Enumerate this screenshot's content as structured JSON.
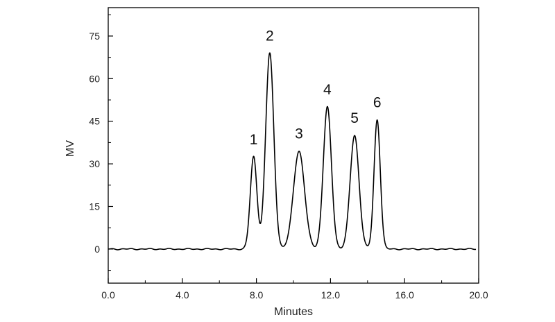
{
  "chart_data": {
    "type": "line",
    "xlabel": "Minutes",
    "ylabel": "MV",
    "xlim": [
      0,
      20
    ],
    "ylim": [
      -12,
      85
    ],
    "xticks": [
      0,
      4,
      8,
      12,
      16,
      20
    ],
    "xtick_labels": [
      "0.0",
      "4.0",
      "8.0",
      "12.0",
      "16.0",
      "20.0"
    ],
    "yticks": [
      0,
      15,
      30,
      45,
      60,
      75
    ],
    "ytick_labels": [
      "0",
      "15",
      "30",
      "45",
      "60",
      "75"
    ],
    "grid": false,
    "legend": "none",
    "line_color": "#000000",
    "series": [
      {
        "peaks": [
          {
            "label": "1",
            "retention_time": 7.85,
            "height": 32.5,
            "width": 0.18
          },
          {
            "label": "2",
            "retention_time": 8.72,
            "height": 69,
            "width": 0.22
          },
          {
            "label": "3",
            "retention_time": 10.3,
            "height": 34.5,
            "width": 0.3
          },
          {
            "label": "4",
            "retention_time": 11.83,
            "height": 50,
            "width": 0.22
          },
          {
            "label": "5",
            "retention_time": 13.3,
            "height": 40,
            "width": 0.24
          },
          {
            "label": "6",
            "retention_time": 14.52,
            "height": 45.5,
            "width": 0.17
          }
        ]
      }
    ]
  }
}
